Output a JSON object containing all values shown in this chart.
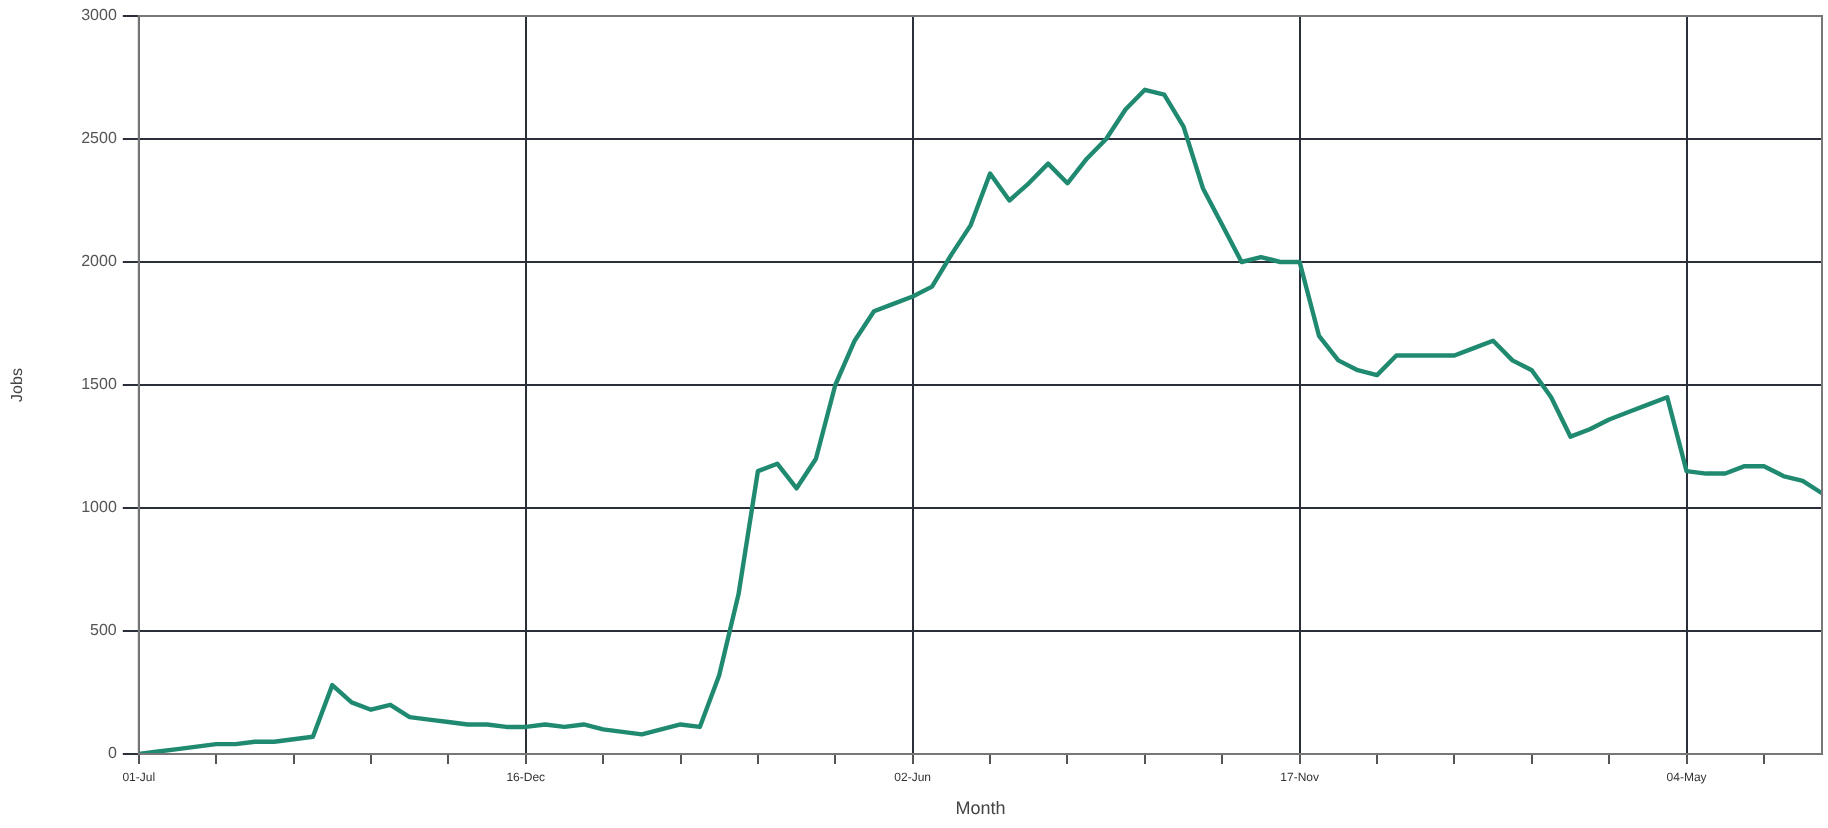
{
  "chart_data": {
    "type": "line",
    "xlabel": "Month",
    "ylabel": "Jobs",
    "categories": [
      "01-Jul",
      null,
      null,
      null,
      null,
      null,
      null,
      null,
      null,
      null,
      null,
      null,
      null,
      null,
      null,
      null,
      null,
      null,
      null,
      null,
      "16-Dec",
      null,
      null,
      null,
      null,
      null,
      null,
      null,
      null,
      null,
      null,
      null,
      null,
      null,
      null,
      null,
      null,
      null,
      null,
      null,
      "02-Jun",
      null,
      null,
      null,
      null,
      null,
      null,
      null,
      null,
      null,
      null,
      null,
      null,
      null,
      null,
      null,
      null,
      null,
      null,
      null,
      "17-Nov",
      null,
      null,
      null,
      null,
      null,
      null,
      null,
      null,
      null,
      null,
      null,
      null,
      null,
      null,
      null,
      null,
      null,
      null,
      null,
      "04-May",
      null,
      null,
      null,
      null,
      null,
      null,
      null
    ],
    "values": [
      0,
      10,
      20,
      30,
      40,
      40,
      50,
      50,
      60,
      70,
      280,
      210,
      180,
      200,
      150,
      140,
      130,
      120,
      120,
      110,
      110,
      120,
      110,
      120,
      100,
      90,
      80,
      100,
      120,
      110,
      320,
      650,
      1150,
      1180,
      1080,
      1200,
      1500,
      1680,
      1800,
      1830,
      1860,
      1900,
      2030,
      2150,
      2360,
      2250,
      2320,
      2400,
      2320,
      2420,
      2500,
      2620,
      2700,
      2680,
      2550,
      2300,
      2150,
      2000,
      2020,
      2000,
      2000,
      1700,
      1600,
      1560,
      1540,
      1620,
      1620,
      1620,
      1620,
      1650,
      1680,
      1600,
      1560,
      1450,
      1290,
      1320,
      1360,
      1390,
      1420,
      1450,
      1150,
      1140,
      1140,
      1170,
      1170,
      1130,
      1110,
      1060
    ],
    "color": "#1f8a70",
    "ylim": [
      0,
      3000
    ],
    "yticks": [
      0,
      500,
      1000,
      1500,
      2000,
      2500,
      3000
    ],
    "grid": true
  }
}
